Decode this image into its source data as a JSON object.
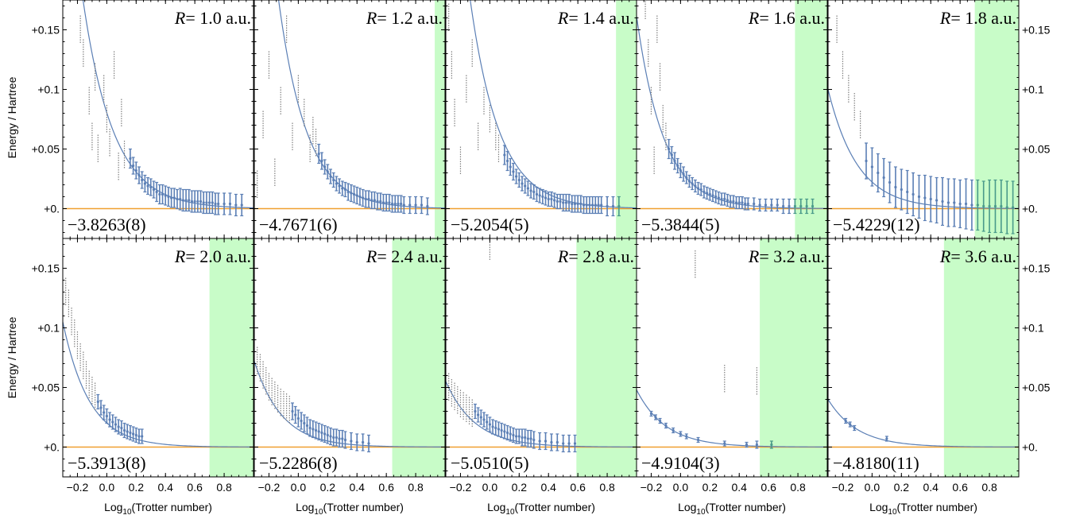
{
  "figure": {
    "ylabel": "Energy / Hartree",
    "xlabel_main": "Log",
    "xlabel_sub": "10",
    "xlabel_rest": "(Trotter number)",
    "ytick_labels": [
      "+0.",
      "+0.05",
      "+0.1",
      "+0.15"
    ],
    "xtick_labels": [
      "−0.2",
      "0.0",
      "0.2",
      "0.4",
      "0.6",
      "0.8"
    ],
    "colors": {
      "fit_curve": "#5b7fb5",
      "error_bars": "#5b7fb5",
      "error_bars_excluded": "#4a9a8a",
      "reference_line": "#f0a030",
      "outliers": "#808080",
      "converged_region": "#c8fcc8"
    }
  },
  "chart_data": [
    {
      "type": "scatter",
      "title": "R= 1.0 a.u.",
      "r_label": "R",
      "r_value": "= 1.0 a.u.",
      "annotation": "−3.8263(8)",
      "xlim": [
        -0.3,
        1.0
      ],
      "ylim": [
        -0.025,
        0.175
      ],
      "fit_amplitude": 0.21,
      "fit_decay": 4.8,
      "fit_x0": -0.2,
      "converged_region": null,
      "points_x": [
        0.16,
        0.18,
        0.2,
        0.22,
        0.24,
        0.26,
        0.28,
        0.3,
        0.32,
        0.34,
        0.36,
        0.38,
        0.4,
        0.42,
        0.44,
        0.46,
        0.48,
        0.5,
        0.52,
        0.54,
        0.56,
        0.58,
        0.6,
        0.62,
        0.64,
        0.66,
        0.68,
        0.7,
        0.72,
        0.74,
        0.76,
        0.8,
        0.84,
        0.88,
        0.92
      ],
      "points_y": [
        0.042,
        0.036,
        0.032,
        0.028,
        0.024,
        0.021,
        0.019,
        0.018,
        0.016,
        0.014,
        0.012,
        0.012,
        0.011,
        0.01,
        0.009,
        0.009,
        0.008,
        0.008,
        0.007,
        0.007,
        0.007,
        0.006,
        0.006,
        0.006,
        0.006,
        0.005,
        0.005,
        0.005,
        0.005,
        0.004,
        0.004,
        0.004,
        0.004,
        0.003,
        0.003
      ],
      "points_err": [
        0.008,
        0.007,
        0.007,
        0.007,
        0.007,
        0.007,
        0.007,
        0.007,
        0.007,
        0.008,
        0.008,
        0.008,
        0.008,
        0.008,
        0.008,
        0.008,
        0.008,
        0.009,
        0.009,
        0.009,
        0.009,
        0.009,
        0.009,
        0.009,
        0.009,
        0.009,
        0.009,
        0.009,
        0.009,
        0.009,
        0.009,
        0.009,
        0.009,
        0.009,
        0.009
      ],
      "outliers_x": [
        -0.18,
        -0.16,
        -0.12,
        -0.1,
        -0.08,
        -0.06,
        -0.02,
        0.0,
        0.02,
        0.05,
        0.08,
        0.1,
        0.12
      ],
      "outliers_y": [
        0.15,
        0.13,
        0.09,
        0.06,
        0.11,
        0.05,
        0.1,
        0.075,
        0.055,
        0.12,
        0.035,
        0.08,
        0.045
      ]
    },
    {
      "type": "scatter",
      "title": "R= 1.2 a.u.",
      "r_label": "R",
      "r_value": "= 1.2 a.u.",
      "annotation": "−4.7671(6)",
      "xlim": [
        -0.3,
        1.0
      ],
      "ylim": [
        -0.025,
        0.175
      ],
      "fit_amplitude": 0.2,
      "fit_decay": 5.2,
      "fit_x0": -0.16,
      "converged_region": [
        0.93,
        1.0
      ],
      "points_x": [
        0.14,
        0.16,
        0.18,
        0.2,
        0.22,
        0.24,
        0.26,
        0.28,
        0.3,
        0.32,
        0.34,
        0.36,
        0.38,
        0.4,
        0.42,
        0.44,
        0.46,
        0.48,
        0.5,
        0.52,
        0.54,
        0.56,
        0.58,
        0.6,
        0.62,
        0.64,
        0.66,
        0.68,
        0.7,
        0.72,
        0.76,
        0.8,
        0.84,
        0.88
      ],
      "points_y": [
        0.046,
        0.04,
        0.035,
        0.031,
        0.027,
        0.024,
        0.021,
        0.019,
        0.017,
        0.016,
        0.014,
        0.013,
        0.012,
        0.011,
        0.01,
        0.009,
        0.008,
        0.008,
        0.007,
        0.007,
        0.006,
        0.006,
        0.005,
        0.005,
        0.005,
        0.004,
        0.004,
        0.004,
        0.004,
        0.003,
        0.003,
        0.003,
        0.003,
        0.002
      ],
      "points_err": [
        0.008,
        0.007,
        0.006,
        0.006,
        0.006,
        0.006,
        0.006,
        0.006,
        0.006,
        0.006,
        0.007,
        0.007,
        0.007,
        0.007,
        0.007,
        0.007,
        0.007,
        0.007,
        0.007,
        0.007,
        0.007,
        0.007,
        0.007,
        0.007,
        0.007,
        0.007,
        0.007,
        0.007,
        0.007,
        0.007,
        0.007,
        0.007,
        0.007,
        0.007
      ],
      "outliers_x": [
        -0.28,
        -0.24,
        -0.2,
        -0.16,
        -0.12,
        -0.08,
        -0.04,
        0.0,
        0.04,
        0.08,
        0.1,
        0.12
      ],
      "outliers_y": [
        0.02,
        0.07,
        0.12,
        0.03,
        0.09,
        0.15,
        0.06,
        0.1,
        0.08,
        0.05,
        0.065,
        0.055
      ]
    },
    {
      "type": "scatter",
      "title": "R= 1.4 a.u.",
      "r_label": "R",
      "r_value": "= 1.4 a.u.",
      "annotation": "−5.2054(5)",
      "xlim": [
        -0.3,
        1.0
      ],
      "ylim": [
        -0.025,
        0.175
      ],
      "fit_amplitude": 0.19,
      "fit_decay": 5.0,
      "fit_x0": -0.15,
      "converged_region": [
        0.86,
        1.0
      ],
      "points_x": [
        0.1,
        0.12,
        0.14,
        0.16,
        0.18,
        0.2,
        0.22,
        0.24,
        0.26,
        0.28,
        0.3,
        0.32,
        0.34,
        0.36,
        0.38,
        0.4,
        0.42,
        0.44,
        0.46,
        0.48,
        0.5,
        0.52,
        0.54,
        0.56,
        0.58,
        0.6,
        0.62,
        0.64,
        0.66,
        0.68,
        0.7,
        0.72,
        0.74,
        0.76,
        0.8,
        0.84,
        0.88
      ],
      "points_y": [
        0.045,
        0.04,
        0.035,
        0.031,
        0.027,
        0.024,
        0.021,
        0.019,
        0.017,
        0.015,
        0.014,
        0.012,
        0.011,
        0.01,
        0.009,
        0.008,
        0.008,
        0.007,
        0.006,
        0.006,
        0.005,
        0.005,
        0.005,
        0.004,
        0.004,
        0.004,
        0.004,
        0.003,
        0.003,
        0.003,
        0.003,
        0.003,
        0.003,
        0.003,
        0.002,
        0.002,
        0.002
      ],
      "points_err": [
        0.008,
        0.008,
        0.007,
        0.007,
        0.006,
        0.006,
        0.006,
        0.006,
        0.006,
        0.006,
        0.006,
        0.006,
        0.006,
        0.006,
        0.006,
        0.006,
        0.006,
        0.006,
        0.006,
        0.006,
        0.007,
        0.007,
        0.007,
        0.007,
        0.007,
        0.007,
        0.007,
        0.007,
        0.007,
        0.007,
        0.007,
        0.007,
        0.007,
        0.007,
        0.008,
        0.008,
        0.008
      ],
      "outliers_x": [
        -0.28,
        -0.26,
        -0.24,
        -0.2,
        -0.16,
        -0.12,
        -0.08,
        -0.04,
        0.0,
        0.04,
        0.06
      ],
      "outliers_y": [
        0.16,
        0.12,
        0.08,
        0.04,
        0.1,
        0.13,
        0.06,
        0.09,
        0.075,
        0.06,
        0.05
      ]
    },
    {
      "type": "scatter",
      "title": "R= 1.6 a.u.",
      "r_label": "R",
      "r_value": "= 1.6 a.u.",
      "annotation": "−5.3844(5)",
      "xlim": [
        -0.3,
        1.0
      ],
      "ylim": [
        -0.025,
        0.175
      ],
      "fit_amplitude": 0.145,
      "fit_decay": 5.4,
      "fit_x0": -0.28,
      "converged_region": [
        0.78,
        1.0
      ],
      "points_x": [
        -0.08,
        -0.06,
        -0.04,
        -0.02,
        0.0,
        0.02,
        0.04,
        0.06,
        0.08,
        0.1,
        0.12,
        0.14,
        0.16,
        0.18,
        0.2,
        0.22,
        0.24,
        0.26,
        0.28,
        0.3,
        0.32,
        0.34,
        0.36,
        0.38,
        0.4,
        0.42,
        0.44,
        0.46,
        0.5,
        0.54,
        0.58,
        0.62,
        0.66,
        0.7,
        0.74,
        0.78,
        0.82,
        0.86,
        0.9
      ],
      "points_y": [
        0.05,
        0.045,
        0.04,
        0.036,
        0.032,
        0.029,
        0.026,
        0.023,
        0.021,
        0.019,
        0.017,
        0.016,
        0.014,
        0.013,
        0.012,
        0.011,
        0.01,
        0.009,
        0.008,
        0.008,
        0.007,
        0.006,
        0.006,
        0.005,
        0.005,
        0.005,
        0.004,
        0.004,
        0.004,
        0.003,
        0.003,
        0.003,
        0.003,
        0.002,
        0.002,
        0.002,
        0.002,
        0.002,
        0.002
      ],
      "points_err": [
        0.008,
        0.007,
        0.007,
        0.006,
        0.006,
        0.006,
        0.005,
        0.005,
        0.005,
        0.005,
        0.005,
        0.005,
        0.005,
        0.005,
        0.005,
        0.005,
        0.005,
        0.005,
        0.005,
        0.005,
        0.005,
        0.005,
        0.005,
        0.005,
        0.005,
        0.005,
        0.005,
        0.005,
        0.005,
        0.005,
        0.005,
        0.005,
        0.005,
        0.006,
        0.006,
        0.006,
        0.006,
        0.006,
        0.006
      ],
      "outliers_x": [
        -0.24,
        -0.22,
        -0.2,
        -0.18,
        -0.16,
        -0.14,
        -0.12,
        -0.1
      ],
      "outliers_y": [
        0.17,
        0.13,
        0.09,
        0.04,
        0.15,
        0.11,
        0.075,
        0.06
      ]
    },
    {
      "type": "scatter",
      "title": "R= 1.8 a.u.",
      "r_label": "R",
      "r_value": "= 1.8 a.u.",
      "annotation": "−5.4229(12)",
      "xlim": [
        -0.3,
        1.0
      ],
      "ylim": [
        -0.025,
        0.175
      ],
      "fit_amplitude": 0.1,
      "fit_decay": 5.0,
      "fit_x0": -0.3,
      "converged_region": [
        0.7,
        1.0
      ],
      "points_x": [
        -0.04,
        0.0,
        0.04,
        0.08,
        0.12,
        0.16,
        0.2,
        0.24,
        0.28,
        0.32,
        0.36,
        0.4,
        0.44,
        0.48,
        0.52,
        0.56,
        0.6,
        0.64,
        0.68,
        0.72,
        0.76,
        0.8,
        0.84,
        0.88,
        0.92,
        0.96
      ],
      "points_y": [
        0.04,
        0.035,
        0.03,
        0.026,
        0.022,
        0.018,
        0.016,
        0.014,
        0.012,
        0.01,
        0.009,
        0.008,
        0.007,
        0.006,
        0.005,
        0.005,
        0.004,
        0.004,
        0.003,
        0.003,
        0.002,
        0.002,
        0.002,
        0.002,
        0.001,
        0.001
      ],
      "points_err": [
        0.015,
        0.016,
        0.016,
        0.016,
        0.017,
        0.017,
        0.017,
        0.018,
        0.018,
        0.018,
        0.019,
        0.019,
        0.019,
        0.02,
        0.02,
        0.02,
        0.02,
        0.021,
        0.021,
        0.021,
        0.021,
        0.022,
        0.022,
        0.022,
        0.022,
        0.022
      ],
      "outliers_x": [
        -0.24,
        -0.2,
        -0.16,
        -0.12,
        -0.08
      ],
      "outliers_y": [
        0.15,
        0.12,
        0.1,
        0.085,
        0.07
      ]
    },
    {
      "type": "scatter",
      "title": "R= 2.0 a.u.",
      "r_label": "R",
      "r_value": "= 2.0 a.u.",
      "annotation": "−5.3913(8)",
      "xlim": [
        -0.3,
        1.0
      ],
      "ylim": [
        -0.025,
        0.175
      ],
      "fit_amplitude": 0.105,
      "fit_decay": 5.5,
      "fit_x0": -0.3,
      "converged_region": [
        0.7,
        1.0
      ],
      "points_x": [
        -0.06,
        -0.04,
        -0.02,
        0.0,
        0.02,
        0.04,
        0.06,
        0.08,
        0.1,
        0.12,
        0.14,
        0.16,
        0.18,
        0.2,
        0.22,
        0.24
      ],
      "points_y": [
        0.038,
        0.033,
        0.029,
        0.026,
        0.023,
        0.021,
        0.019,
        0.017,
        0.016,
        0.014,
        0.013,
        0.012,
        0.011,
        0.01,
        0.009,
        0.009
      ],
      "points_err": [
        0.006,
        0.006,
        0.006,
        0.006,
        0.006,
        0.006,
        0.006,
        0.006,
        0.006,
        0.006,
        0.006,
        0.006,
        0.006,
        0.006,
        0.006,
        0.006
      ],
      "outliers_x": [
        -0.28,
        -0.26,
        -0.24,
        -0.22,
        -0.2,
        -0.18,
        -0.16,
        -0.14,
        -0.12,
        -0.1,
        -0.08
      ],
      "outliers_y": [
        0.13,
        0.12,
        0.105,
        0.095,
        0.085,
        0.075,
        0.068,
        0.06,
        0.052,
        0.047,
        0.042
      ]
    },
    {
      "type": "scatter",
      "title": "R= 2.4 a.u.",
      "r_label": "R",
      "r_value": "= 2.4 a.u.",
      "annotation": "−5.2286(8)",
      "xlim": [
        -0.3,
        1.0
      ],
      "ylim": [
        -0.025,
        0.175
      ],
      "fit_amplitude": 0.072,
      "fit_decay": 5.3,
      "fit_x0": -0.3,
      "converged_region": [
        0.64,
        1.0
      ],
      "points_x": [
        -0.04,
        -0.02,
        0.0,
        0.02,
        0.04,
        0.06,
        0.08,
        0.1,
        0.12,
        0.14,
        0.16,
        0.18,
        0.2,
        0.22,
        0.24,
        0.26,
        0.28,
        0.3,
        0.32,
        0.36,
        0.4,
        0.44,
        0.48
      ],
      "points_y": [
        0.03,
        0.027,
        0.024,
        0.022,
        0.02,
        0.018,
        0.016,
        0.015,
        0.014,
        0.013,
        0.012,
        0.011,
        0.01,
        0.009,
        0.008,
        0.008,
        0.007,
        0.007,
        0.006,
        0.005,
        0.004,
        0.004,
        0.003
      ],
      "points_err": [
        0.007,
        0.007,
        0.007,
        0.007,
        0.007,
        0.007,
        0.007,
        0.007,
        0.007,
        0.007,
        0.007,
        0.007,
        0.007,
        0.007,
        0.007,
        0.007,
        0.007,
        0.007,
        0.007,
        0.007,
        0.007,
        0.007,
        0.007
      ],
      "outliers_x": [
        -0.28,
        -0.26,
        -0.24,
        -0.22,
        -0.2,
        -0.18,
        -0.16,
        -0.14,
        -0.12,
        -0.1,
        -0.08,
        -0.06
      ],
      "outliers_y": [
        0.072,
        0.066,
        0.06,
        0.055,
        0.05,
        0.046,
        0.043,
        0.04,
        0.037,
        0.035,
        0.033,
        0.031
      ]
    },
    {
      "type": "scatter",
      "title": "R= 2.8 a.u.",
      "r_label": "R",
      "r_value": "= 2.8 a.u.",
      "annotation": "−5.0510(5)",
      "xlim": [
        -0.3,
        1.0
      ],
      "ylim": [
        -0.025,
        0.175
      ],
      "fit_amplitude": 0.055,
      "fit_decay": 5.0,
      "fit_x0": -0.3,
      "converged_region": [
        0.59,
        1.0
      ],
      "points_x": [
        -0.1,
        -0.08,
        -0.06,
        -0.04,
        -0.02,
        0.0,
        0.02,
        0.04,
        0.06,
        0.08,
        0.1,
        0.12,
        0.14,
        0.16,
        0.18,
        0.2,
        0.22,
        0.24,
        0.26,
        0.28,
        0.3,
        0.34,
        0.38,
        0.42,
        0.46,
        0.5,
        0.54,
        0.58
      ],
      "points_y": [
        0.03,
        0.027,
        0.025,
        0.023,
        0.021,
        0.019,
        0.017,
        0.016,
        0.015,
        0.014,
        0.013,
        0.012,
        0.011,
        0.01,
        0.009,
        0.009,
        0.008,
        0.008,
        0.007,
        0.007,
        0.006,
        0.005,
        0.005,
        0.004,
        0.004,
        0.003,
        0.003,
        0.003
      ],
      "points_err": [
        0.006,
        0.006,
        0.006,
        0.006,
        0.006,
        0.006,
        0.006,
        0.006,
        0.006,
        0.006,
        0.006,
        0.006,
        0.006,
        0.006,
        0.006,
        0.006,
        0.007,
        0.007,
        0.007,
        0.007,
        0.007,
        0.007,
        0.007,
        0.007,
        0.007,
        0.007,
        0.007,
        0.007
      ],
      "outliers_x": [
        -0.28,
        -0.26,
        -0.24,
        -0.22,
        -0.2,
        -0.18,
        -0.16,
        -0.14,
        -0.12,
        0.0
      ],
      "outliers_y": [
        0.05,
        0.045,
        0.042,
        0.039,
        0.036,
        0.034,
        0.032,
        0.03,
        0.028,
        0.168
      ]
    },
    {
      "type": "scatter",
      "title": "R= 3.2 a.u.",
      "r_label": "R",
      "r_value": "= 3.2 a.u.",
      "annotation": "−4.9104(3)",
      "xlim": [
        -0.3,
        1.0
      ],
      "ylim": [
        -0.025,
        0.175
      ],
      "fit_amplitude": 0.048,
      "fit_decay": 5.0,
      "fit_x0": -0.3,
      "converged_region": [
        0.54,
        1.0
      ],
      "points_x": [
        -0.2,
        -0.17,
        -0.14,
        -0.1,
        -0.05,
        0.0,
        0.04,
        0.12,
        0.3,
        0.45,
        0.52,
        0.62
      ],
      "points_y": [
        0.028,
        0.025,
        0.022,
        0.018,
        0.014,
        0.011,
        0.009,
        0.006,
        0.003,
        0.002,
        0.002,
        0.002
      ],
      "points_err": [
        0.002,
        0.002,
        0.002,
        0.002,
        0.002,
        0.002,
        0.002,
        0.002,
        0.002,
        0.002,
        0.003,
        0.003
      ],
      "outliers_x": [
        0.1,
        0.3,
        0.52
      ],
      "outliers_y": [
        0.153,
        0.057,
        0.055
      ]
    },
    {
      "type": "scatter",
      "title": "R= 3.6 a.u.",
      "r_label": "R",
      "r_value": "= 3.6 a.u.",
      "annotation": "−4.8180(11)",
      "xlim": [
        -0.3,
        1.0
      ],
      "ylim": [
        -0.025,
        0.175
      ],
      "fit_amplitude": 0.04,
      "fit_decay": 5.0,
      "fit_x0": -0.3,
      "converged_region": [
        0.49,
        1.0
      ],
      "points_x": [
        -0.18,
        -0.15,
        -0.12,
        0.1
      ],
      "points_y": [
        0.022,
        0.019,
        0.016,
        0.007
      ],
      "points_err": [
        0.002,
        0.002,
        0.002,
        0.002
      ],
      "outliers_x": [],
      "outliers_y": []
    }
  ]
}
